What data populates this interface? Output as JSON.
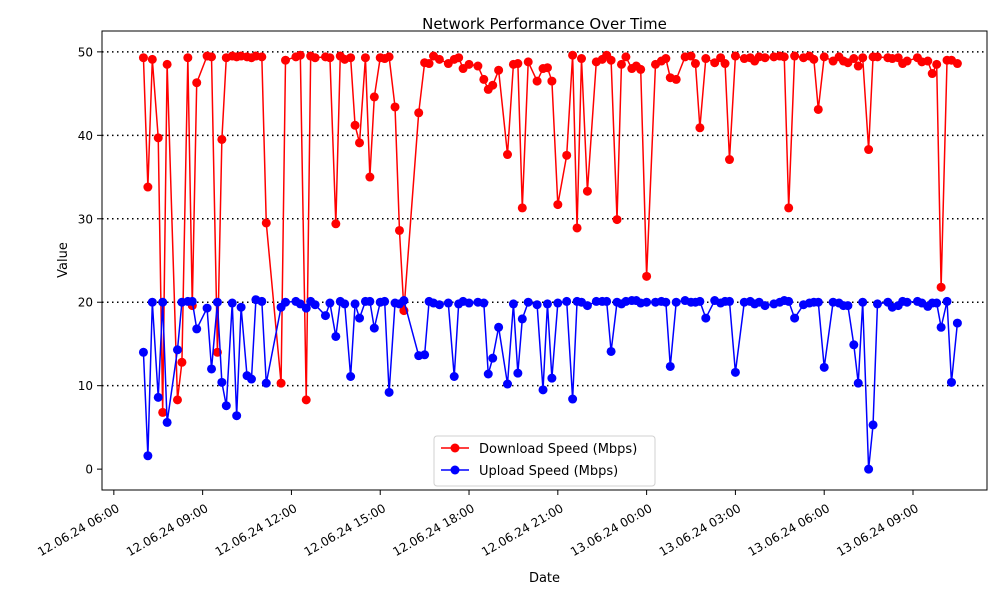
{
  "chart_data": {
    "type": "line",
    "title": "Network Performance Over Time",
    "xlabel": "Date",
    "ylabel": "Value",
    "x_tick_labels": [
      "12.06.24 06:00",
      "12.06.24 09:00",
      "12.06.24 12:00",
      "12.06.24 15:00",
      "12.06.24 18:00",
      "12.06.24 21:00",
      "13.06.24 00:00",
      "13.06.24 03:00",
      "13.06.24 06:00",
      "13.06.24 09:00"
    ],
    "x_ticks_hours": [
      0,
      3,
      6,
      9,
      12,
      15,
      18,
      21,
      24,
      27
    ],
    "xlim_hours": [
      -0.4,
      29.5
    ],
    "ylim": [
      -2.5,
      52.5
    ],
    "y_ticks": [
      0,
      10,
      20,
      30,
      40,
      50
    ],
    "grid": {
      "axis": "y",
      "style": "dotted"
    },
    "legend_position": "lower-center",
    "series": [
      {
        "name": "Download Speed (Mbps)",
        "color": "#ff0000",
        "points": [
          [
            1.0,
            49.3
          ],
          [
            1.15,
            33.8
          ],
          [
            1.3,
            49.1
          ],
          [
            1.5,
            39.7
          ],
          [
            1.65,
            6.8
          ],
          [
            1.8,
            48.5
          ],
          [
            2.15,
            8.3
          ],
          [
            2.3,
            12.8
          ],
          [
            2.5,
            49.3
          ],
          [
            2.65,
            19.6
          ],
          [
            2.8,
            46.3
          ],
          [
            3.15,
            49.5
          ],
          [
            3.3,
            49.4
          ],
          [
            3.5,
            14.0
          ],
          [
            3.65,
            39.5
          ],
          [
            3.8,
            49.3
          ],
          [
            4.0,
            49.5
          ],
          [
            4.15,
            49.4
          ],
          [
            4.3,
            49.5
          ],
          [
            4.5,
            49.4
          ],
          [
            4.65,
            49.3
          ],
          [
            4.8,
            49.5
          ],
          [
            5.0,
            49.4
          ],
          [
            5.15,
            29.5
          ],
          [
            5.65,
            10.3
          ],
          [
            5.8,
            49.0
          ],
          [
            6.15,
            49.4
          ],
          [
            6.3,
            49.6
          ],
          [
            6.5,
            8.3
          ],
          [
            6.65,
            49.5
          ],
          [
            6.8,
            49.3
          ],
          [
            7.15,
            49.4
          ],
          [
            7.3,
            49.3
          ],
          [
            7.5,
            29.4
          ],
          [
            7.65,
            49.5
          ],
          [
            7.8,
            49.1
          ],
          [
            8.0,
            49.3
          ],
          [
            8.15,
            41.2
          ],
          [
            8.3,
            39.1
          ],
          [
            8.5,
            49.3
          ],
          [
            8.65,
            35.0
          ],
          [
            8.8,
            44.6
          ],
          [
            9.0,
            49.3
          ],
          [
            9.15,
            49.2
          ],
          [
            9.3,
            49.4
          ],
          [
            9.5,
            43.4
          ],
          [
            9.65,
            28.6
          ],
          [
            9.8,
            19.0
          ],
          [
            10.3,
            42.7
          ],
          [
            10.5,
            48.7
          ],
          [
            10.65,
            48.6
          ],
          [
            10.8,
            49.5
          ],
          [
            11.0,
            49.1
          ],
          [
            11.3,
            48.6
          ],
          [
            11.5,
            49.1
          ],
          [
            11.65,
            49.3
          ],
          [
            11.8,
            48.0
          ],
          [
            12.0,
            48.5
          ],
          [
            12.3,
            48.3
          ],
          [
            12.5,
            46.7
          ],
          [
            12.65,
            45.5
          ],
          [
            12.8,
            46.0
          ],
          [
            13.0,
            47.8
          ],
          [
            13.3,
            37.7
          ],
          [
            13.5,
            48.5
          ],
          [
            13.65,
            48.6
          ],
          [
            13.8,
            31.3
          ],
          [
            14.0,
            48.8
          ],
          [
            14.3,
            46.5
          ],
          [
            14.5,
            48.0
          ],
          [
            14.65,
            48.1
          ],
          [
            14.8,
            46.5
          ],
          [
            15.0,
            31.7
          ],
          [
            15.3,
            37.6
          ],
          [
            15.5,
            49.6
          ],
          [
            15.65,
            28.9
          ],
          [
            15.8,
            49.2
          ],
          [
            16.0,
            33.3
          ],
          [
            16.3,
            48.8
          ],
          [
            16.5,
            49.1
          ],
          [
            16.65,
            49.6
          ],
          [
            16.8,
            49.0
          ],
          [
            17.0,
            29.9
          ],
          [
            17.15,
            48.5
          ],
          [
            17.3,
            49.4
          ],
          [
            17.5,
            48.0
          ],
          [
            17.65,
            48.3
          ],
          [
            17.8,
            47.9
          ],
          [
            18.0,
            23.1
          ],
          [
            18.3,
            48.5
          ],
          [
            18.5,
            48.9
          ],
          [
            18.65,
            49.2
          ],
          [
            18.8,
            46.9
          ],
          [
            19.0,
            46.7
          ],
          [
            19.3,
            49.4
          ],
          [
            19.5,
            49.5
          ],
          [
            19.65,
            48.6
          ],
          [
            19.8,
            40.9
          ],
          [
            20.0,
            49.2
          ],
          [
            20.3,
            48.7
          ],
          [
            20.5,
            49.3
          ],
          [
            20.65,
            48.6
          ],
          [
            20.8,
            37.1
          ],
          [
            21.0,
            49.5
          ],
          [
            21.3,
            49.2
          ],
          [
            21.5,
            49.3
          ],
          [
            21.65,
            48.9
          ],
          [
            21.8,
            49.4
          ],
          [
            22.0,
            49.3
          ],
          [
            22.3,
            49.4
          ],
          [
            22.5,
            49.5
          ],
          [
            22.65,
            49.4
          ],
          [
            22.8,
            31.3
          ],
          [
            23.0,
            49.5
          ],
          [
            23.3,
            49.3
          ],
          [
            23.5,
            49.5
          ],
          [
            23.65,
            49.1
          ],
          [
            23.8,
            43.1
          ],
          [
            24.0,
            49.4
          ],
          [
            24.3,
            48.9
          ],
          [
            24.5,
            49.4
          ],
          [
            24.65,
            48.9
          ],
          [
            24.8,
            48.7
          ],
          [
            25.0,
            49.2
          ],
          [
            25.15,
            48.3
          ],
          [
            25.3,
            49.3
          ],
          [
            25.5,
            38.3
          ],
          [
            25.65,
            49.4
          ],
          [
            25.8,
            49.4
          ],
          [
            26.15,
            49.3
          ],
          [
            26.3,
            49.2
          ],
          [
            26.5,
            49.3
          ],
          [
            26.65,
            48.6
          ],
          [
            26.8,
            48.9
          ],
          [
            27.15,
            49.3
          ],
          [
            27.3,
            48.8
          ],
          [
            27.5,
            48.9
          ],
          [
            27.65,
            47.4
          ],
          [
            27.8,
            48.5
          ],
          [
            27.95,
            21.8
          ],
          [
            28.15,
            49.0
          ],
          [
            28.3,
            49.0
          ],
          [
            28.5,
            48.6
          ]
        ]
      },
      {
        "name": "Upload Speed (Mbps)",
        "color": "#0000ff",
        "points": [
          [
            1.0,
            14.0
          ],
          [
            1.15,
            1.6
          ],
          [
            1.3,
            20.0
          ],
          [
            1.5,
            8.6
          ],
          [
            1.65,
            20.0
          ],
          [
            1.8,
            5.6
          ],
          [
            2.15,
            14.3
          ],
          [
            2.3,
            20.0
          ],
          [
            2.5,
            20.1
          ],
          [
            2.65,
            20.1
          ],
          [
            2.8,
            16.8
          ],
          [
            3.15,
            19.3
          ],
          [
            3.3,
            12.0
          ],
          [
            3.5,
            20.0
          ],
          [
            3.65,
            10.4
          ],
          [
            3.8,
            7.6
          ],
          [
            4.0,
            19.9
          ],
          [
            4.15,
            6.4
          ],
          [
            4.3,
            19.4
          ],
          [
            4.5,
            11.2
          ],
          [
            4.65,
            10.8
          ],
          [
            4.8,
            20.3
          ],
          [
            5.0,
            20.1
          ],
          [
            5.15,
            10.3
          ],
          [
            5.65,
            19.4
          ],
          [
            5.8,
            20.0
          ],
          [
            6.15,
            20.1
          ],
          [
            6.3,
            19.8
          ],
          [
            6.5,
            19.3
          ],
          [
            6.65,
            20.1
          ],
          [
            6.8,
            19.7
          ],
          [
            7.15,
            18.4
          ],
          [
            7.3,
            19.9
          ],
          [
            7.5,
            15.9
          ],
          [
            7.65,
            20.1
          ],
          [
            7.8,
            19.8
          ],
          [
            8.0,
            11.1
          ],
          [
            8.15,
            19.8
          ],
          [
            8.3,
            18.1
          ],
          [
            8.5,
            20.1
          ],
          [
            8.65,
            20.1
          ],
          [
            8.8,
            16.9
          ],
          [
            9.0,
            20.0
          ],
          [
            9.15,
            20.1
          ],
          [
            9.3,
            9.2
          ],
          [
            9.5,
            19.9
          ],
          [
            9.65,
            19.8
          ],
          [
            9.8,
            20.2
          ],
          [
            10.3,
            13.6
          ],
          [
            10.5,
            13.7
          ],
          [
            10.65,
            20.1
          ],
          [
            10.8,
            19.9
          ],
          [
            11.0,
            19.7
          ],
          [
            11.3,
            19.9
          ],
          [
            11.5,
            11.1
          ],
          [
            11.65,
            19.8
          ],
          [
            11.8,
            20.1
          ],
          [
            12.0,
            19.9
          ],
          [
            12.3,
            20.0
          ],
          [
            12.5,
            19.9
          ],
          [
            12.65,
            11.4
          ],
          [
            12.8,
            13.3
          ],
          [
            13.0,
            17.0
          ],
          [
            13.3,
            10.2
          ],
          [
            13.5,
            19.8
          ],
          [
            13.65,
            11.5
          ],
          [
            13.8,
            18.0
          ],
          [
            14.0,
            20.0
          ],
          [
            14.3,
            19.7
          ],
          [
            14.5,
            9.5
          ],
          [
            14.65,
            19.8
          ],
          [
            14.8,
            10.9
          ],
          [
            15.0,
            19.9
          ],
          [
            15.3,
            20.1
          ],
          [
            15.5,
            8.4
          ],
          [
            15.65,
            20.1
          ],
          [
            15.8,
            20.0
          ],
          [
            16.0,
            19.6
          ],
          [
            16.3,
            20.1
          ],
          [
            16.5,
            20.1
          ],
          [
            16.65,
            20.1
          ],
          [
            16.8,
            14.1
          ],
          [
            17.0,
            20.0
          ],
          [
            17.15,
            19.8
          ],
          [
            17.3,
            20.1
          ],
          [
            17.5,
            20.2
          ],
          [
            17.65,
            20.2
          ],
          [
            17.8,
            19.9
          ],
          [
            18.0,
            20.0
          ],
          [
            18.3,
            20.0
          ],
          [
            18.5,
            20.1
          ],
          [
            18.65,
            20.0
          ],
          [
            18.8,
            12.3
          ],
          [
            19.0,
            20.0
          ],
          [
            19.3,
            20.2
          ],
          [
            19.5,
            20.0
          ],
          [
            19.65,
            20.0
          ],
          [
            19.8,
            20.1
          ],
          [
            20.0,
            18.1
          ],
          [
            20.3,
            20.2
          ],
          [
            20.5,
            19.9
          ],
          [
            20.65,
            20.1
          ],
          [
            20.8,
            20.1
          ],
          [
            21.0,
            11.6
          ],
          [
            21.3,
            20.0
          ],
          [
            21.5,
            20.1
          ],
          [
            21.65,
            19.8
          ],
          [
            21.8,
            20.0
          ],
          [
            22.0,
            19.6
          ],
          [
            22.3,
            19.8
          ],
          [
            22.5,
            20.0
          ],
          [
            22.65,
            20.2
          ],
          [
            22.8,
            20.1
          ],
          [
            23.0,
            18.1
          ],
          [
            23.3,
            19.7
          ],
          [
            23.5,
            19.9
          ],
          [
            23.65,
            20.0
          ],
          [
            23.8,
            20.0
          ],
          [
            24.0,
            12.2
          ],
          [
            24.3,
            20.0
          ],
          [
            24.5,
            19.9
          ],
          [
            24.65,
            19.6
          ],
          [
            24.8,
            19.6
          ],
          [
            25.0,
            14.9
          ],
          [
            25.15,
            10.3
          ],
          [
            25.3,
            20.0
          ],
          [
            25.5,
            0.0
          ],
          [
            25.65,
            5.3
          ],
          [
            25.8,
            19.8
          ],
          [
            26.15,
            20.0
          ],
          [
            26.3,
            19.4
          ],
          [
            26.5,
            19.6
          ],
          [
            26.65,
            20.1
          ],
          [
            26.8,
            20.0
          ],
          [
            27.15,
            20.1
          ],
          [
            27.3,
            19.9
          ],
          [
            27.5,
            19.5
          ],
          [
            27.65,
            19.9
          ],
          [
            27.8,
            19.9
          ],
          [
            27.95,
            17.0
          ],
          [
            28.15,
            20.1
          ],
          [
            28.3,
            10.4
          ],
          [
            28.5,
            17.5
          ]
        ]
      }
    ]
  }
}
